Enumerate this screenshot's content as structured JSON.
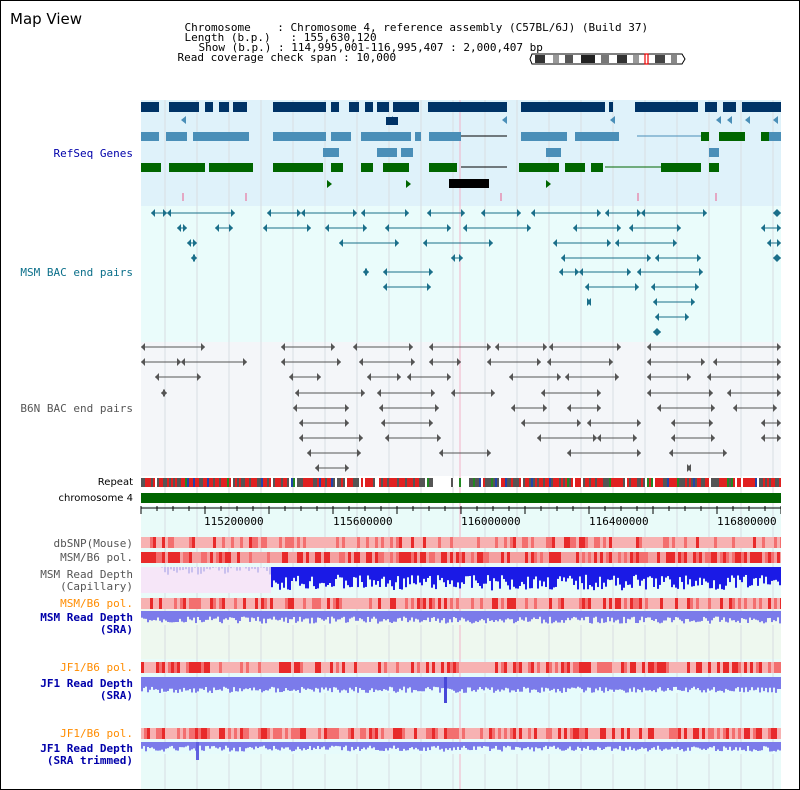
{
  "page_title": "Map View",
  "info": {
    "chromosome_label": "Chromosome",
    "chromosome_value": "Chromosome 4, reference assembly (C57BL/6J) (Build 37)",
    "length_label": "Length (b.p.)",
    "length_value": "155,630,120",
    "show_label": "Show (b.p.)",
    "show_value": "114,995,001-116,995,407 : 2,000,407 bp",
    "span_label": "Read coverage check span",
    "span_value": "10,000"
  },
  "tracks": {
    "refseq": "RefSeq Genes",
    "msm_bac": "MSM BAC end pairs",
    "b6n_bac": "B6N BAC end pairs",
    "repeat": "Repeat",
    "chromosome": "chromosome 4",
    "dbsnp": "dbSNP(Mouse)",
    "msm_b6_pol_1": "MSM/B6 pol.",
    "msm_depth_cap_1": "MSM Read Depth",
    "msm_depth_cap_2": "(Capillary)",
    "msm_b6_pol_2": "MSM/B6 pol.",
    "msm_depth_sra_1": "MSM Read Depth",
    "msm_depth_sra_2": "(SRA)",
    "jf1_b6_pol_1": "JF1/B6 pol.",
    "jf1_depth_sra_1": "JF1 Read Depth",
    "jf1_depth_sra_2": "(SRA)",
    "jf1_b6_pol_2": "JF1/B6 pol.",
    "jf1_depth_trim_1": "JF1 Read Depth",
    "jf1_depth_trim_2": "(SRA trimmed)"
  },
  "axis": {
    "ticks": [
      "115200000",
      "115600000",
      "116000000",
      "116400000",
      "116800000"
    ]
  },
  "colors": {
    "refseq_dark": "#003366",
    "refseq_mid": "#4a8fb8",
    "refseq_green": "#006600",
    "refseq_bg": "#dff2fa",
    "msm_bg": "#eafcfb",
    "msm_color": "#1b6f8a",
    "b6n_bg": "#f4f6f9",
    "b6n_color": "#555555",
    "chrom_green": "#006400",
    "depth_blue": "#1a1ae6",
    "depth_light": "#7b7bea",
    "label_blue": "#0000aa",
    "label_orange": "#ff8c00",
    "label_teal": "#0b6f8a"
  }
}
